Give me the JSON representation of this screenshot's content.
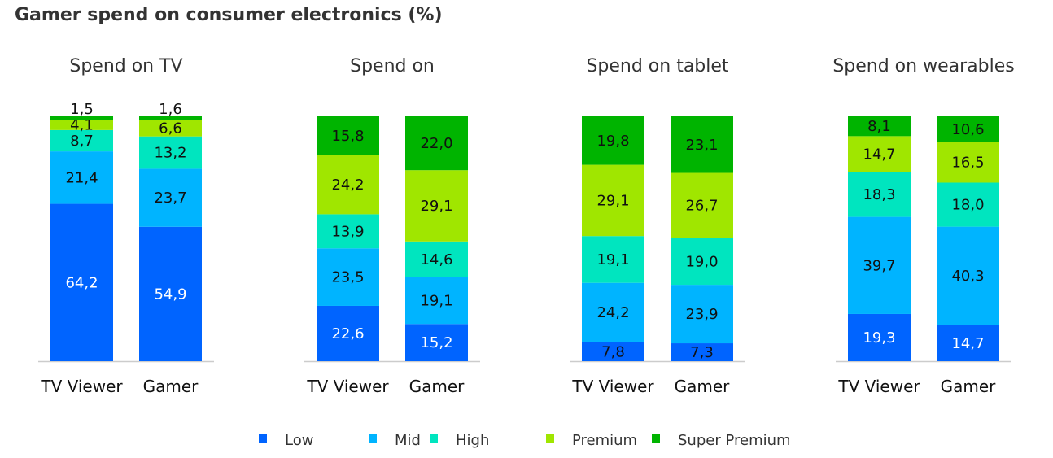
{
  "chart_data": {
    "type": "bar",
    "stacked": true,
    "title": "Gamer spend on consumer electronics (%)",
    "legend_position": "bottom",
    "grid": false,
    "series_names": [
      "Low",
      "Mid",
      "High",
      "Premium",
      "Super Premium"
    ],
    "colors": {
      "Low": "#0064FF",
      "Mid": "#00B4FF",
      "High": "#00E5BF",
      "Premium": "#A0E600",
      "Super Premium": "#00B400"
    },
    "panels": [
      {
        "title": "Spend on TV",
        "categories": [
          "TV Viewer",
          "Gamer"
        ],
        "values": [
          [
            64.2,
            21.4,
            8.7,
            4.1,
            1.5
          ],
          [
            54.9,
            23.7,
            13.2,
            6.6,
            1.6
          ]
        ],
        "labels": [
          [
            "64,2",
            "21,4",
            "8,7",
            "4,1",
            "1,5"
          ],
          [
            "54,9",
            "23,7",
            "13,2",
            "6,6",
            "1,6"
          ]
        ]
      },
      {
        "title": "Spend on",
        "categories": [
          "TV Viewer",
          "Gamer"
        ],
        "values": [
          [
            22.6,
            23.5,
            13.9,
            24.2,
            15.8
          ],
          [
            15.2,
            19.1,
            14.6,
            29.1,
            22.0
          ]
        ],
        "labels": [
          [
            "22,6",
            "23,5",
            "13,9",
            "24,2",
            "15,8"
          ],
          [
            "15,2",
            "19,1",
            "14,6",
            "29,1",
            "22,0"
          ]
        ]
      },
      {
        "title": "Spend on tablet",
        "categories": [
          "TV Viewer",
          "Gamer"
        ],
        "values": [
          [
            7.8,
            24.2,
            19.1,
            29.1,
            19.8
          ],
          [
            7.3,
            23.9,
            19.0,
            26.7,
            23.1
          ]
        ],
        "labels": [
          [
            "7,8",
            "24,2",
            "19,1",
            "29,1",
            "19,8"
          ],
          [
            "7,3",
            "23,9",
            "19,0",
            "26,7",
            "23,1"
          ]
        ]
      },
      {
        "title": "Spend on wearables",
        "categories": [
          "TV Viewer",
          "Gamer"
        ],
        "values": [
          [
            19.3,
            39.7,
            18.3,
            14.7,
            8.1
          ],
          [
            14.7,
            40.3,
            18.0,
            16.5,
            10.6
          ]
        ],
        "labels": [
          [
            "19,3",
            "39,7",
            "18,3",
            "14,7",
            "8,1"
          ],
          [
            "14,7",
            "40,3",
            "18,0",
            "16,5",
            "10,6"
          ]
        ]
      }
    ]
  }
}
